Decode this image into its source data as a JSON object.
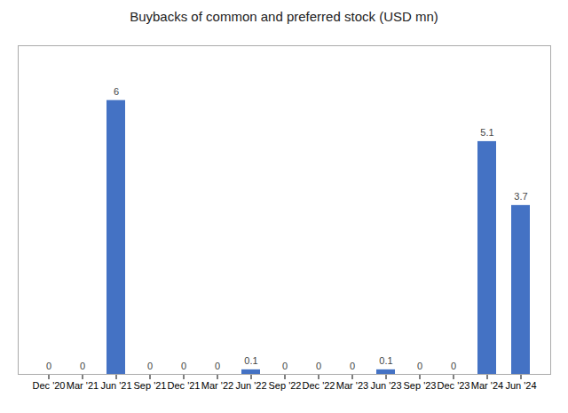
{
  "chart_data": {
    "type": "bar",
    "title": "Buybacks of common and preferred stock (USD mn)",
    "categories": [
      "Dec '20",
      "Mar '21",
      "Jun '21",
      "Sep '21",
      "Dec '21",
      "Mar '22",
      "Jun '22",
      "Sep '22",
      "Dec '22",
      "Mar '23",
      "Jun '23",
      "Sep '23",
      "Dec '23",
      "Mar '24",
      "Jun '24"
    ],
    "values": [
      0,
      0,
      6,
      0,
      0,
      0,
      0.1,
      0,
      0,
      0,
      0.1,
      0,
      0,
      5.1,
      3.7
    ],
    "color": "#4472C4",
    "ylim": [
      0,
      7.2
    ],
    "grid": false,
    "data_labels": true,
    "tick_labels": "x"
  }
}
